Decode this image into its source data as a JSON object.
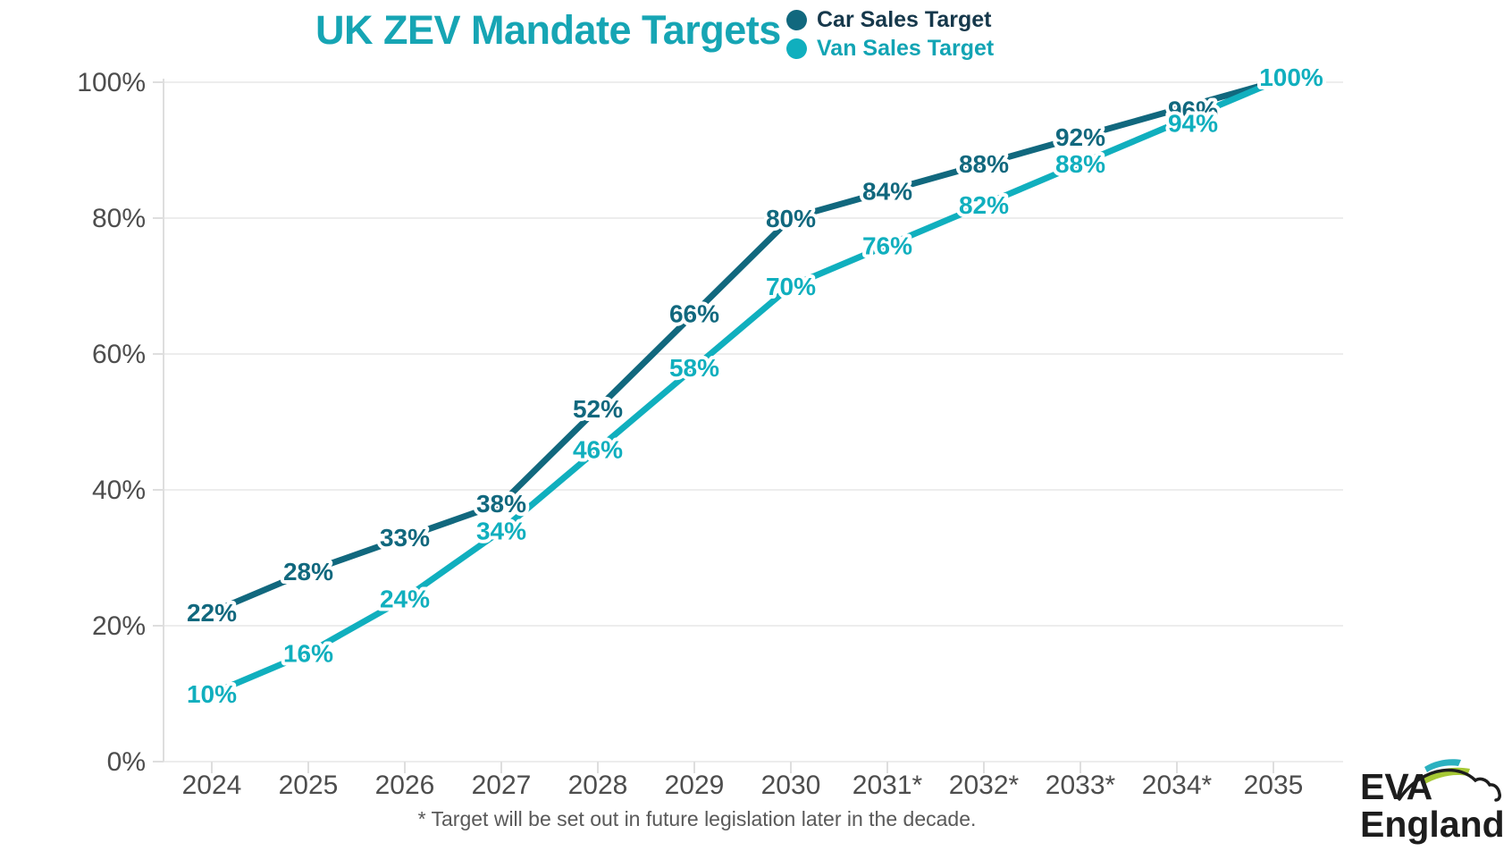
{
  "title": "UK ZEV Mandate Targets",
  "title_color": "#16a5b4",
  "legend": [
    {
      "label": "Car Sales Target",
      "dot_color": "#11687e",
      "text_color": "#16384b"
    },
    {
      "label": "Van Sales Target",
      "dot_color": "#10afbe",
      "text_color": "#12a4b4"
    }
  ],
  "footnote": "* Target will be set out in future legislation later in the decade.",
  "logo": {
    "line1": "EVA",
    "line2": "England",
    "swoosh_teal": "#2cb1c0",
    "swoosh_lime": "#a6c835"
  },
  "chart_data": {
    "type": "line",
    "title": "UK ZEV Mandate Targets",
    "x": [
      "2024",
      "2025",
      "2026",
      "2027",
      "2028",
      "2029",
      "2030",
      "2031*",
      "2032*",
      "2033*",
      "2034*",
      "2035"
    ],
    "series": [
      {
        "name": "Car Sales Target",
        "color": "#11687e",
        "values": [
          22,
          28,
          33,
          38,
          52,
          66,
          80,
          84,
          88,
          92,
          96,
          100
        ],
        "show_last_label": false
      },
      {
        "name": "Van Sales Target",
        "color": "#10afbe",
        "values": [
          10,
          16,
          24,
          34,
          46,
          58,
          70,
          76,
          82,
          88,
          94,
          100
        ],
        "show_last_label": true
      }
    ],
    "y_ticks": [
      0,
      20,
      40,
      60,
      80,
      100
    ],
    "y_tick_labels": [
      "0%",
      "20%",
      "40%",
      "60%",
      "80%",
      "100%"
    ],
    "ylim": [
      0,
      100
    ],
    "grid": true,
    "legend_position": "top-right",
    "data_labels": "value + %",
    "axis_label_color": "#4d4d4d",
    "grid_color": "#ededed",
    "axis_color": "#dedede"
  }
}
